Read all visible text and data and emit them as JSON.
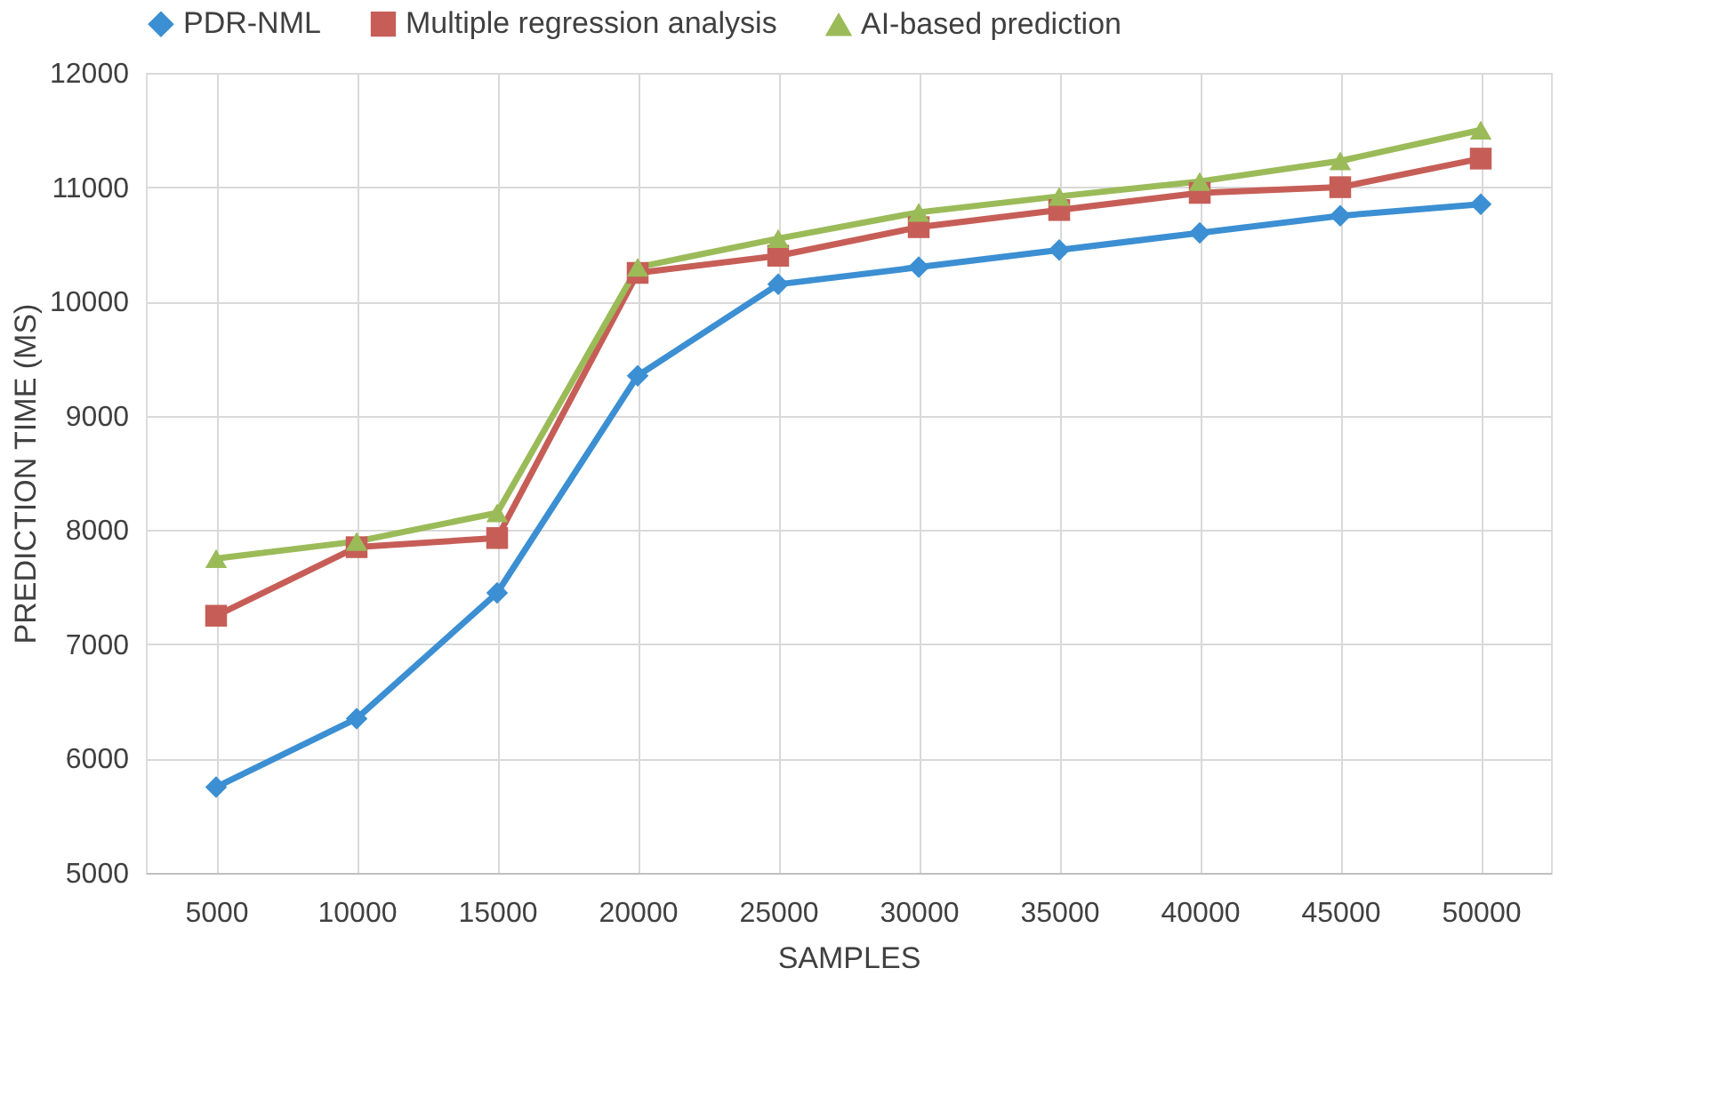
{
  "chart_data": {
    "type": "line",
    "xlabel": "SAMPLES",
    "ylabel": "PREDICTION TIME (MS)",
    "categories": [
      "5000",
      "10000",
      "15000",
      "20000",
      "25000",
      "30000",
      "35000",
      "40000",
      "45000",
      "50000"
    ],
    "series": [
      {
        "name": "PDR-NML",
        "color": "#3b8fd2",
        "marker": "diamond",
        "values": [
          5750,
          6350,
          7450,
          9350,
          10150,
          10300,
          10450,
          10600,
          10750,
          10850
        ]
      },
      {
        "name": "Multiple regression analysis",
        "color": "#c65e57",
        "marker": "square",
        "values": [
          7250,
          7850,
          7930,
          10250,
          10400,
          10650,
          10800,
          10950,
          11000,
          11250
        ]
      },
      {
        "name": "AI-based prediction",
        "color": "#9bbb59",
        "marker": "triangle",
        "values": [
          7750,
          7900,
          8150,
          10300,
          10550,
          10780,
          10920,
          11050,
          11230,
          11500
        ]
      }
    ],
    "ylim": [
      5000,
      12000
    ],
    "yticks": [
      5000,
      6000,
      7000,
      8000,
      9000,
      10000,
      11000,
      12000
    ],
    "grid": true,
    "legend": "top",
    "line_style": "solid"
  }
}
